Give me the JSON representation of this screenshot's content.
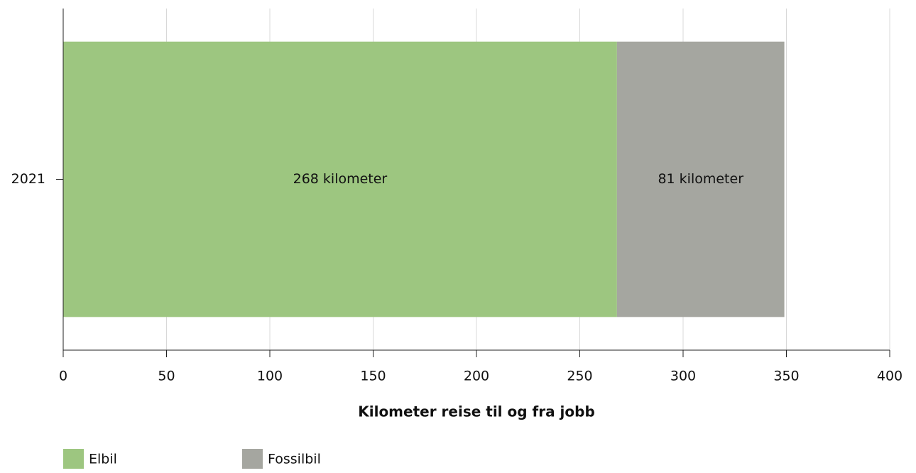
{
  "chart_data": {
    "type": "bar",
    "orientation": "horizontal",
    "stacked": true,
    "categories": [
      "2021"
    ],
    "series": [
      {
        "name": "Elbil",
        "color": "#9dc680",
        "values": [
          268
        ],
        "value_labels": [
          "268 kilometer"
        ]
      },
      {
        "name": "Fossilbil",
        "color": "#a5a6a0",
        "values": [
          81
        ],
        "value_labels": [
          "81 kilometer"
        ]
      }
    ],
    "xlabel": "Kilometer reise til og fra jobb",
    "xlim": [
      0,
      400
    ],
    "xticks": [
      0,
      50,
      100,
      150,
      200,
      250,
      300,
      350,
      400
    ],
    "grid": true,
    "legend": "bottom-left"
  }
}
